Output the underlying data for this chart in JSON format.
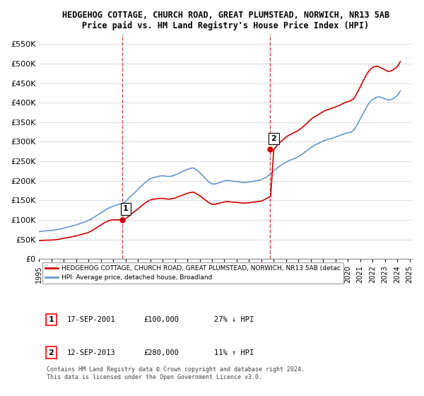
{
  "title_line1": "HEDGEHOG COTTAGE, CHURCH ROAD, GREAT PLUMSTEAD, NORWICH, NR13 5AB",
  "title_line2": "Price paid vs. HM Land Registry's House Price Index (HPI)",
  "xlabel": "",
  "ylabel": "",
  "ylim": [
    0,
    575000
  ],
  "yticks": [
    0,
    50000,
    100000,
    150000,
    200000,
    250000,
    300000,
    350000,
    400000,
    450000,
    500000,
    550000
  ],
  "ytick_labels": [
    "£0",
    "£50K",
    "£100K",
    "£150K",
    "£200K",
    "£250K",
    "£300K",
    "£350K",
    "£400K",
    "£450K",
    "£500K",
    "£550K"
  ],
  "sale1_date": 2001.72,
  "sale1_price": 100000,
  "sale1_label": "1",
  "sale2_date": 2013.7,
  "sale2_price": 280000,
  "sale2_label": "2",
  "line_color_red": "#cc0000",
  "line_color_blue": "#6699cc",
  "vline_color": "#dd4444",
  "grid_color": "#dddddd",
  "background_color": "#ffffff",
  "legend_label_red": "HEDGEHOG COTTAGE, CHURCH ROAD, GREAT PLUMSTEAD, NORWICH, NR13 5AB (detac",
  "legend_label_blue": "HPI: Average price, detached house, Broadland",
  "table_row1": [
    "1",
    "17-SEP-2001",
    "£100,000",
    "27% ↓ HPI"
  ],
  "table_row2": [
    "2",
    "12-SEP-2013",
    "£280,000",
    "11% ↑ HPI"
  ],
  "footer": "Contains HM Land Registry data © Crown copyright and database right 2024.\nThis data is licensed under the Open Government Licence v3.0.",
  "hpi_dates": [
    1995.0,
    1995.25,
    1995.5,
    1995.75,
    1996.0,
    1996.25,
    1996.5,
    1996.75,
    1997.0,
    1997.25,
    1997.5,
    1997.75,
    1998.0,
    1998.25,
    1998.5,
    1998.75,
    1999.0,
    1999.25,
    1999.5,
    1999.75,
    2000.0,
    2000.25,
    2000.5,
    2000.75,
    2001.0,
    2001.25,
    2001.5,
    2001.75,
    2002.0,
    2002.25,
    2002.5,
    2002.75,
    2003.0,
    2003.25,
    2003.5,
    2003.75,
    2004.0,
    2004.25,
    2004.5,
    2004.75,
    2005.0,
    2005.25,
    2005.5,
    2005.75,
    2006.0,
    2006.25,
    2006.5,
    2006.75,
    2007.0,
    2007.25,
    2007.5,
    2007.75,
    2008.0,
    2008.25,
    2008.5,
    2008.75,
    2009.0,
    2009.25,
    2009.5,
    2009.75,
    2010.0,
    2010.25,
    2010.5,
    2010.75,
    2011.0,
    2011.25,
    2011.5,
    2011.75,
    2012.0,
    2012.25,
    2012.5,
    2012.75,
    2013.0,
    2013.25,
    2013.5,
    2013.75,
    2014.0,
    2014.25,
    2014.5,
    2014.75,
    2015.0,
    2015.25,
    2015.5,
    2015.75,
    2016.0,
    2016.25,
    2016.5,
    2016.75,
    2017.0,
    2017.25,
    2017.5,
    2017.75,
    2018.0,
    2018.25,
    2018.5,
    2018.75,
    2019.0,
    2019.25,
    2019.5,
    2019.75,
    2020.0,
    2020.25,
    2020.5,
    2020.75,
    2021.0,
    2021.25,
    2021.5,
    2021.75,
    2022.0,
    2022.25,
    2022.5,
    2022.75,
    2023.0,
    2023.25,
    2023.5,
    2023.75,
    2024.0,
    2024.25
  ],
  "hpi_values": [
    70000,
    71000,
    72000,
    72500,
    73000,
    74000,
    75500,
    77000,
    79000,
    81000,
    83000,
    85000,
    87000,
    90000,
    93000,
    95000,
    99000,
    103000,
    108000,
    113000,
    118000,
    123000,
    128000,
    132000,
    135000,
    138000,
    140000,
    142000,
    147000,
    155000,
    163000,
    170000,
    178000,
    186000,
    193000,
    200000,
    205000,
    208000,
    210000,
    212000,
    213000,
    212000,
    211000,
    212000,
    215000,
    218000,
    222000,
    226000,
    229000,
    232000,
    233000,
    228000,
    221000,
    213000,
    205000,
    197000,
    192000,
    192000,
    194000,
    197000,
    200000,
    201000,
    200000,
    199000,
    198000,
    197000,
    196000,
    196000,
    197000,
    198000,
    200000,
    201000,
    203000,
    207000,
    212000,
    218000,
    225000,
    232000,
    238000,
    243000,
    248000,
    252000,
    255000,
    258000,
    262000,
    267000,
    273000,
    279000,
    285000,
    290000,
    294000,
    298000,
    302000,
    305000,
    307000,
    309000,
    312000,
    315000,
    318000,
    321000,
    323000,
    324000,
    330000,
    343000,
    358000,
    373000,
    388000,
    400000,
    408000,
    413000,
    415000,
    413000,
    410000,
    407000,
    408000,
    412000,
    418000,
    430000
  ],
  "red_dates": [
    1995.0,
    1995.25,
    1995.5,
    1995.75,
    1996.0,
    1996.25,
    1996.5,
    1996.75,
    1997.0,
    1997.25,
    1997.5,
    1997.75,
    1998.0,
    1998.25,
    1998.5,
    1998.75,
    1999.0,
    1999.25,
    1999.5,
    1999.75,
    2000.0,
    2000.25,
    2000.5,
    2000.75,
    2001.0,
    2001.25,
    2001.5,
    2001.75,
    2002.0,
    2002.25,
    2002.5,
    2002.75,
    2003.0,
    2003.25,
    2003.5,
    2003.75,
    2004.0,
    2004.25,
    2004.5,
    2004.75,
    2005.0,
    2005.25,
    2005.5,
    2005.75,
    2006.0,
    2006.25,
    2006.5,
    2006.75,
    2007.0,
    2007.25,
    2007.5,
    2007.75,
    2008.0,
    2008.25,
    2008.5,
    2008.75,
    2009.0,
    2009.25,
    2009.5,
    2009.75,
    2010.0,
    2010.25,
    2010.5,
    2010.75,
    2011.0,
    2011.25,
    2011.5,
    2011.75,
    2012.0,
    2012.25,
    2012.5,
    2012.75,
    2013.0,
    2013.25,
    2013.5,
    2013.75,
    2014.0,
    2014.25,
    2014.5,
    2014.75,
    2015.0,
    2015.25,
    2015.5,
    2015.75,
    2016.0,
    2016.25,
    2016.5,
    2016.75,
    2017.0,
    2017.25,
    2017.5,
    2017.75,
    2018.0,
    2018.25,
    2018.5,
    2018.75,
    2019.0,
    2019.25,
    2019.5,
    2019.75,
    2020.0,
    2020.25,
    2020.5,
    2020.75,
    2021.0,
    2021.25,
    2021.5,
    2021.75,
    2022.0,
    2022.25,
    2022.5,
    2022.75,
    2023.0,
    2023.25,
    2023.5,
    2023.75,
    2024.0,
    2024.25
  ],
  "red_values": [
    47000,
    47500,
    48000,
    48200,
    48500,
    49000,
    50000,
    51500,
    53000,
    54500,
    56000,
    57500,
    59000,
    61000,
    63500,
    65500,
    68000,
    72000,
    77000,
    82000,
    87000,
    92000,
    96000,
    99000,
    100000,
    100500,
    100000,
    100000,
    103000,
    109000,
    116000,
    122000,
    128000,
    135000,
    141000,
    147000,
    151000,
    153000,
    154000,
    155000,
    155000,
    154000,
    153000,
    154000,
    156000,
    159000,
    162000,
    165000,
    168000,
    170000,
    171000,
    167000,
    162000,
    156000,
    150000,
    144000,
    140000,
    140000,
    142000,
    144000,
    146000,
    147000,
    146000,
    145000,
    145000,
    144000,
    143000,
    143000,
    144000,
    145000,
    146000,
    147000,
    148000,
    152000,
    156000,
    160000,
    280000,
    290000,
    298000,
    305000,
    312000,
    317000,
    321000,
    325000,
    329000,
    335000,
    342000,
    349000,
    357000,
    363000,
    367000,
    372000,
    377000,
    381000,
    383000,
    386000,
    389000,
    392000,
    396000,
    400000,
    403000,
    405000,
    411000,
    425000,
    440000,
    456000,
    471000,
    483000,
    490000,
    493000,
    492000,
    488000,
    484000,
    480000,
    481000,
    486000,
    492000,
    505000
  ],
  "xlim": [
    1995.0,
    2025.2
  ],
  "xticks": [
    1995,
    1996,
    1997,
    1998,
    1999,
    2000,
    2001,
    2002,
    2003,
    2004,
    2005,
    2006,
    2007,
    2008,
    2009,
    2010,
    2011,
    2012,
    2013,
    2014,
    2015,
    2016,
    2017,
    2018,
    2019,
    2020,
    2021,
    2022,
    2023,
    2024,
    2025
  ]
}
